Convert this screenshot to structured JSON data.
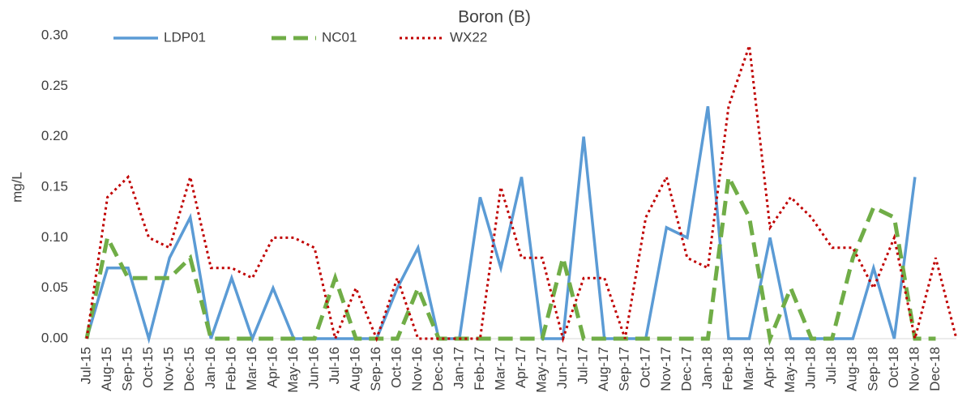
{
  "chart_data": {
    "type": "line",
    "title": "Boron (B)",
    "y_label": "mg/L",
    "categories": [
      "Jul-15",
      "Aug-15",
      "Sep-15",
      "Oct-15",
      "Nov-15",
      "Dec-15",
      "Jan-16",
      "Feb-16",
      "Mar-16",
      "Apr-16",
      "May-16",
      "Jun-16",
      "Jul-16",
      "Aug-16",
      "Sep-16",
      "Oct-16",
      "Nov-16",
      "Dec-16",
      "Jan-17",
      "Feb-17",
      "Mar-17",
      "Apr-17",
      "May-17",
      "Jun-17",
      "Jul-17",
      "Aug-17",
      "Sep-17",
      "Oct-17",
      "Nov-17",
      "Dec-17",
      "Jan-18",
      "Feb-18",
      "Mar-18",
      "Apr-18",
      "May-18",
      "Jun-18",
      "Jul-18",
      "Aug-18",
      "Sep-18",
      "Oct-18",
      "Nov-18",
      "Dec-18",
      null
    ],
    "series": [
      {
        "name": "LDP01",
        "color": "#5b9bd5",
        "style": "solid",
        "values": [
          0,
          0.07,
          0.07,
          0,
          0.08,
          0.12,
          0,
          0.06,
          0,
          0.05,
          0,
          0,
          0,
          0,
          0,
          0.05,
          0.09,
          0,
          0,
          0.14,
          0.07,
          0.16,
          0,
          0,
          0.2,
          0,
          0,
          0,
          0.11,
          0.1,
          0.23,
          0,
          0,
          0.1,
          0,
          0,
          0,
          0,
          0.07,
          0,
          0.16,
          null,
          null
        ]
      },
      {
        "name": "NC01",
        "color": "#70ad47",
        "style": "dashed",
        "values": [
          0,
          0.1,
          0.06,
          0.06,
          0.06,
          0.08,
          0,
          0,
          0,
          0,
          0,
          0,
          0.06,
          0,
          0,
          0,
          0.05,
          0,
          0,
          0,
          0,
          0,
          0,
          0.08,
          0,
          0,
          0,
          0,
          0,
          0,
          0,
          0.16,
          0.12,
          0,
          0.05,
          0,
          0,
          0.08,
          0.13,
          0.12,
          0,
          0,
          null
        ]
      },
      {
        "name": "WX22",
        "color": "#c00000",
        "style": "dotted",
        "values": [
          0,
          0.14,
          0.16,
          0.1,
          0.09,
          0.16,
          0.07,
          0.07,
          0.06,
          0.1,
          0.1,
          0.09,
          0,
          0.05,
          0,
          0.06,
          0,
          0,
          0,
          0,
          0.15,
          0.08,
          0.08,
          0,
          0.06,
          0.06,
          0,
          0.12,
          0.16,
          0.08,
          0.07,
          0.23,
          0.29,
          0.11,
          0.14,
          0.12,
          0.09,
          0.09,
          0.05,
          0.1,
          0,
          0.08,
          0
        ]
      }
    ],
    "ylim": [
      0,
      0.3
    ],
    "yticks": [
      {
        "value": 0,
        "label": "0.00"
      },
      {
        "value": 0.05,
        "label": "0.05"
      },
      {
        "value": 0.1,
        "label": "0.10"
      },
      {
        "value": 0.15,
        "label": "0.15"
      },
      {
        "value": 0.2,
        "label": "0.20"
      },
      {
        "value": 0.25,
        "label": "0.25"
      },
      {
        "value": 0.3,
        "label": "0.30"
      }
    ],
    "grid": false,
    "legend": "top-left"
  }
}
